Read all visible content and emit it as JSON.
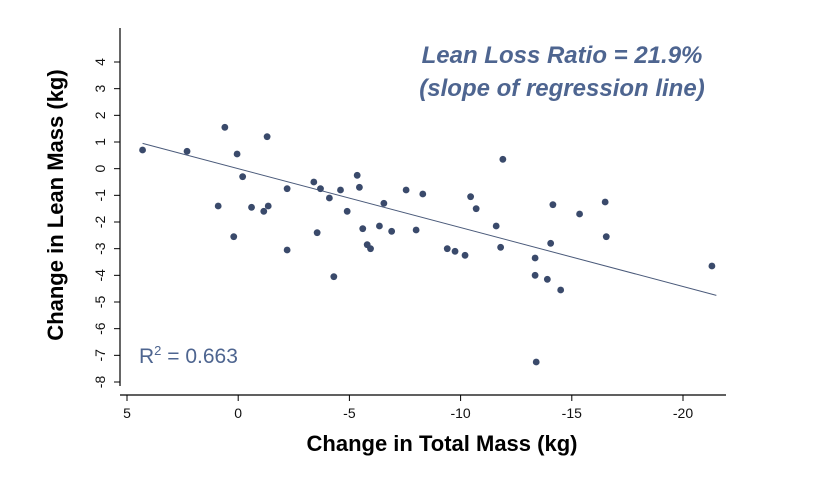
{
  "chart_data": {
    "type": "scatter",
    "xlabel": "Change in Total Mass (kg)",
    "ylabel": "Change in Lean Mass (kg)",
    "xlim": [
      5,
      -22
    ],
    "ylim": [
      -8.3,
      5.3
    ],
    "x_axis_reversed": true,
    "x_ticks": [
      5,
      0,
      -5,
      -10,
      -15,
      -20
    ],
    "x_tick_labels": [
      "5",
      "0",
      "-5",
      "-10",
      "-15",
      "-20"
    ],
    "y_ticks": [
      4,
      3,
      2,
      1,
      0,
      -1,
      -2,
      -3,
      -4,
      -5,
      -6,
      -7,
      -8
    ],
    "y_tick_labels": [
      "4",
      "3",
      "2",
      "1",
      "0",
      "-1",
      "-2",
      "-3",
      "-4",
      "-5",
      "-6",
      "-7",
      "-8"
    ],
    "y_tick_label_rotation": "vertical",
    "grid": false,
    "annotation_line1": "Lean Loss Ratio = 21.9%",
    "annotation_line2": "(slope of regression line)",
    "r_squared_label": "R",
    "r_squared_superscript": "2",
    "r_squared_value": " = 0.663",
    "colors": {
      "points": "#3a4a6b",
      "regression_line": "#4a5a7a",
      "annotation": "#4e6590",
      "r2_text": "#4e6590"
    },
    "regression_line": {
      "x": [
        4.3,
        -21.5
      ],
      "y": [
        0.95,
        -4.75
      ]
    },
    "points": [
      {
        "x": 4.3,
        "y": 0.7
      },
      {
        "x": 2.3,
        "y": 0.65
      },
      {
        "x": 0.6,
        "y": 1.55
      },
      {
        "x": 0.05,
        "y": 0.55
      },
      {
        "x": -1.3,
        "y": 1.2
      },
      {
        "x": -0.2,
        "y": -0.3
      },
      {
        "x": 0.9,
        "y": -1.4
      },
      {
        "x": -0.6,
        "y": -1.45
      },
      {
        "x": -1.15,
        "y": -1.6
      },
      {
        "x": -1.35,
        "y": -1.4
      },
      {
        "x": 0.2,
        "y": -2.55
      },
      {
        "x": -2.2,
        "y": -0.75
      },
      {
        "x": -2.2,
        "y": -3.05
      },
      {
        "x": -3.4,
        "y": -0.5
      },
      {
        "x": -3.7,
        "y": -0.75
      },
      {
        "x": -4.1,
        "y": -1.1
      },
      {
        "x": -3.55,
        "y": -2.4
      },
      {
        "x": -4.3,
        "y": -4.05
      },
      {
        "x": -4.6,
        "y": -0.8
      },
      {
        "x": -4.9,
        "y": -1.6
      },
      {
        "x": -5.35,
        "y": -0.25
      },
      {
        "x": -5.45,
        "y": -0.7
      },
      {
        "x": -5.6,
        "y": -2.25
      },
      {
        "x": -5.8,
        "y": -2.85
      },
      {
        "x": -5.95,
        "y": -3.0
      },
      {
        "x": -6.35,
        "y": -2.15
      },
      {
        "x": -6.55,
        "y": -1.3
      },
      {
        "x": -6.9,
        "y": -2.35
      },
      {
        "x": -7.55,
        "y": -0.8
      },
      {
        "x": -8.0,
        "y": -2.3
      },
      {
        "x": -8.3,
        "y": -0.95
      },
      {
        "x": -9.4,
        "y": -3.0
      },
      {
        "x": -9.75,
        "y": -3.1
      },
      {
        "x": -10.2,
        "y": -3.25
      },
      {
        "x": -10.45,
        "y": -1.05
      },
      {
        "x": -10.7,
        "y": -1.5
      },
      {
        "x": -11.9,
        "y": 0.35
      },
      {
        "x": -11.6,
        "y": -2.15
      },
      {
        "x": -11.8,
        "y": -2.95
      },
      {
        "x": -13.35,
        "y": -3.35
      },
      {
        "x": -13.35,
        "y": -4.0
      },
      {
        "x": -13.4,
        "y": -7.25
      },
      {
        "x": -13.9,
        "y": -4.15
      },
      {
        "x": -14.05,
        "y": -2.8
      },
      {
        "x": -14.15,
        "y": -1.35
      },
      {
        "x": -14.5,
        "y": -4.55
      },
      {
        "x": -15.35,
        "y": -1.7
      },
      {
        "x": -16.5,
        "y": -1.25
      },
      {
        "x": -16.55,
        "y": -2.55
      },
      {
        "x": -21.3,
        "y": -3.65
      }
    ]
  }
}
